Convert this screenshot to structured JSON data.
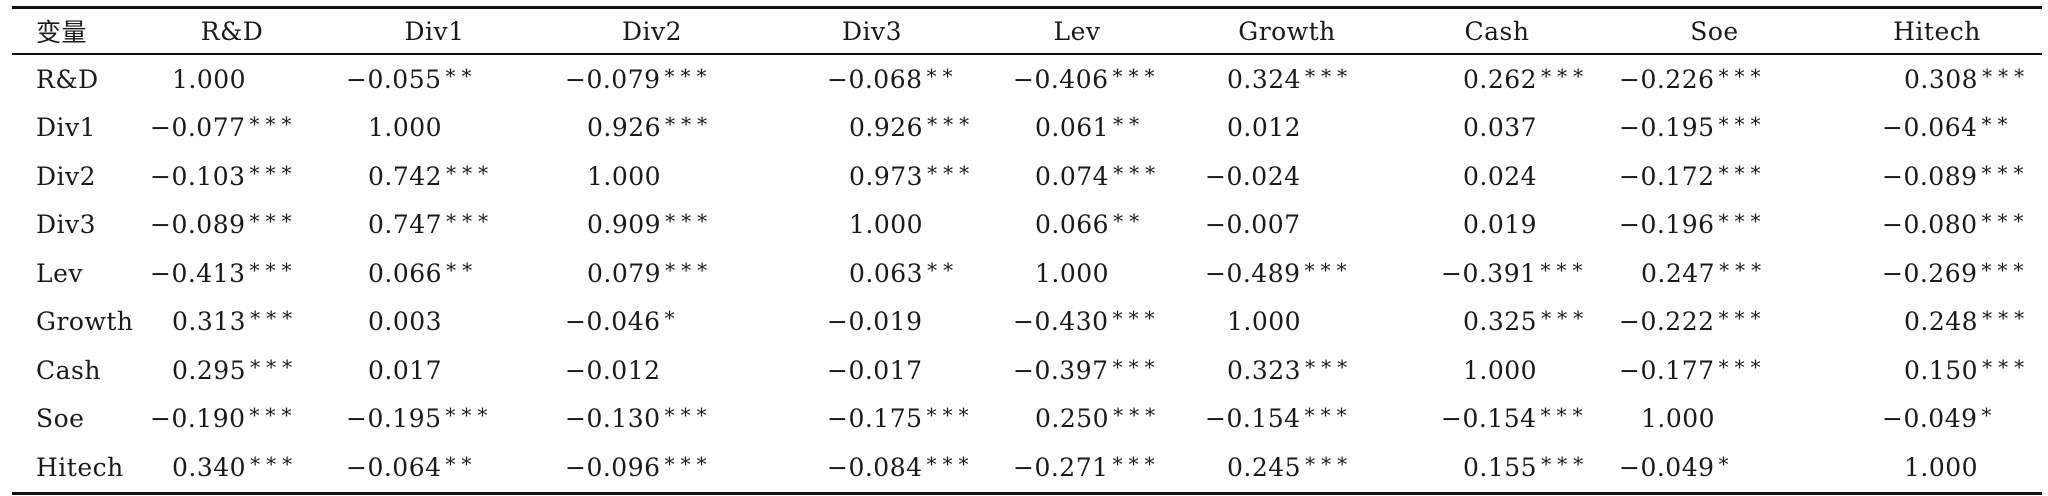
{
  "table": {
    "corner": "变量",
    "columns": [
      "R&D",
      "Div1",
      "Div2",
      "Div3",
      "Lev",
      "Growth",
      "Cash",
      "Soe",
      "Hitech"
    ],
    "rows": [
      {
        "label": "R&D",
        "cells": [
          {
            "v": "1.000",
            "s": ""
          },
          {
            "v": "−0.055",
            "s": "**"
          },
          {
            "v": "−0.079",
            "s": "***"
          },
          {
            "v": "−0.068",
            "s": "**"
          },
          {
            "v": "−0.406",
            "s": "***"
          },
          {
            "v": "0.324",
            "s": "***"
          },
          {
            "v": "0.262",
            "s": "***"
          },
          {
            "v": "−0.226",
            "s": "***"
          },
          {
            "v": "0.308",
            "s": "***"
          }
        ]
      },
      {
        "label": "Div1",
        "cells": [
          {
            "v": "−0.077",
            "s": "***"
          },
          {
            "v": "1.000",
            "s": ""
          },
          {
            "v": "0.926",
            "s": "***"
          },
          {
            "v": "0.926",
            "s": "***"
          },
          {
            "v": "0.061",
            "s": "**"
          },
          {
            "v": "0.012",
            "s": ""
          },
          {
            "v": "0.037",
            "s": ""
          },
          {
            "v": "−0.195",
            "s": "***"
          },
          {
            "v": "−0.064",
            "s": "**"
          }
        ]
      },
      {
        "label": "Div2",
        "cells": [
          {
            "v": "−0.103",
            "s": "***"
          },
          {
            "v": "0.742",
            "s": "***"
          },
          {
            "v": "1.000",
            "s": ""
          },
          {
            "v": "0.973",
            "s": "***"
          },
          {
            "v": "0.074",
            "s": "***"
          },
          {
            "v": "−0.024",
            "s": ""
          },
          {
            "v": "0.024",
            "s": ""
          },
          {
            "v": "−0.172",
            "s": "***"
          },
          {
            "v": "−0.089",
            "s": "***"
          }
        ]
      },
      {
        "label": "Div3",
        "cells": [
          {
            "v": "−0.089",
            "s": "***"
          },
          {
            "v": "0.747",
            "s": "***"
          },
          {
            "v": "0.909",
            "s": "***"
          },
          {
            "v": "1.000",
            "s": ""
          },
          {
            "v": "0.066",
            "s": "**"
          },
          {
            "v": "−0.007",
            "s": ""
          },
          {
            "v": "0.019",
            "s": ""
          },
          {
            "v": "−0.196",
            "s": "***"
          },
          {
            "v": "−0.080",
            "s": "***"
          }
        ]
      },
      {
        "label": "Lev",
        "cells": [
          {
            "v": "−0.413",
            "s": "***"
          },
          {
            "v": "0.066",
            "s": "**"
          },
          {
            "v": "0.079",
            "s": "***"
          },
          {
            "v": "0.063",
            "s": "**"
          },
          {
            "v": "1.000",
            "s": ""
          },
          {
            "v": "−0.489",
            "s": "***"
          },
          {
            "v": "−0.391",
            "s": "***"
          },
          {
            "v": "0.247",
            "s": "***"
          },
          {
            "v": "−0.269",
            "s": "***"
          }
        ]
      },
      {
        "label": "Growth",
        "cells": [
          {
            "v": "0.313",
            "s": "***"
          },
          {
            "v": "0.003",
            "s": ""
          },
          {
            "v": "−0.046",
            "s": "*"
          },
          {
            "v": "−0.019",
            "s": ""
          },
          {
            "v": "−0.430",
            "s": "***"
          },
          {
            "v": "1.000",
            "s": ""
          },
          {
            "v": "0.325",
            "s": "***"
          },
          {
            "v": "−0.222",
            "s": "***"
          },
          {
            "v": "0.248",
            "s": "***"
          }
        ]
      },
      {
        "label": "Cash",
        "cells": [
          {
            "v": "0.295",
            "s": "***"
          },
          {
            "v": "0.017",
            "s": ""
          },
          {
            "v": "−0.012",
            "s": ""
          },
          {
            "v": "−0.017",
            "s": ""
          },
          {
            "v": "−0.397",
            "s": "***"
          },
          {
            "v": "0.323",
            "s": "***"
          },
          {
            "v": "1.000",
            "s": ""
          },
          {
            "v": "−0.177",
            "s": "***"
          },
          {
            "v": "0.150",
            "s": "***"
          }
        ]
      },
      {
        "label": "Soe",
        "cells": [
          {
            "v": "−0.190",
            "s": "***"
          },
          {
            "v": "−0.195",
            "s": "***"
          },
          {
            "v": "−0.130",
            "s": "***"
          },
          {
            "v": "−0.175",
            "s": "***"
          },
          {
            "v": "0.250",
            "s": "***"
          },
          {
            "v": "−0.154",
            "s": "***"
          },
          {
            "v": "−0.154",
            "s": "***"
          },
          {
            "v": "1.000",
            "s": ""
          },
          {
            "v": "−0.049",
            "s": "*"
          }
        ]
      },
      {
        "label": "Hitech",
        "cells": [
          {
            "v": "0.340",
            "s": "***"
          },
          {
            "v": "−0.064",
            "s": "**"
          },
          {
            "v": "−0.096",
            "s": "***"
          },
          {
            "v": "−0.084",
            "s": "***"
          },
          {
            "v": "−0.271",
            "s": "***"
          },
          {
            "v": "0.245",
            "s": "***"
          },
          {
            "v": "0.155",
            "s": "***"
          },
          {
            "v": "−0.049",
            "s": "*"
          },
          {
            "v": "1.000",
            "s": ""
          }
        ]
      }
    ]
  }
}
